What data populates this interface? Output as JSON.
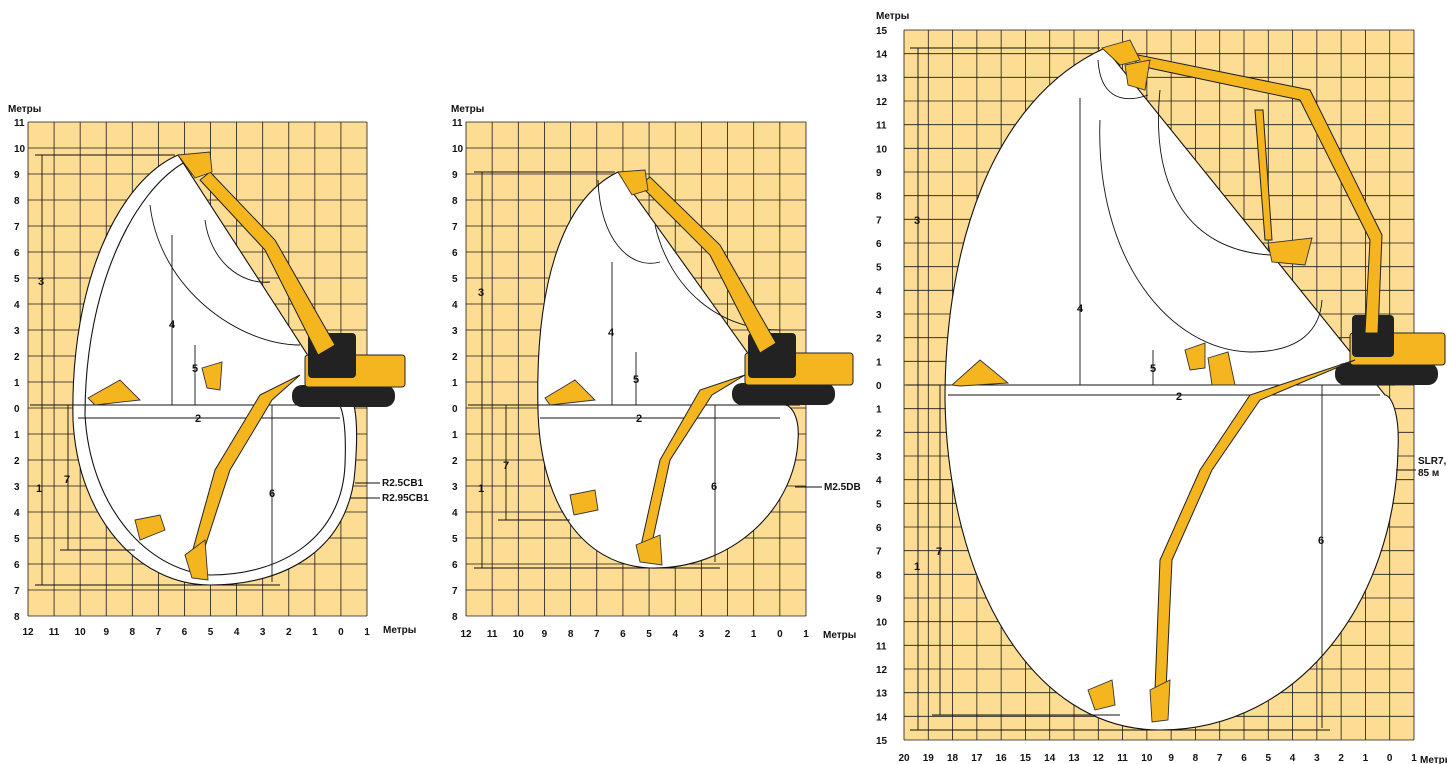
{
  "diagrams": [
    {
      "id": "r2",
      "y_title": "Метры",
      "x_title": "Метры",
      "x_ticks": [
        "12",
        "11",
        "10",
        "9",
        "8",
        "7",
        "6",
        "5",
        "4",
        "3",
        "2",
        "1",
        "0",
        "1"
      ],
      "y_ticks_up": [
        "11",
        "10",
        "9",
        "8",
        "7",
        "6",
        "5",
        "4",
        "3",
        "2",
        "1",
        "0"
      ],
      "y_ticks_down": [
        "1",
        "2",
        "3",
        "4",
        "5",
        "6",
        "7",
        "8"
      ],
      "dim_labels": [
        "1",
        "2",
        "3",
        "4",
        "5",
        "6",
        "7"
      ],
      "range_labels": [
        "R2.5CB1",
        "R2.95CB1"
      ],
      "x_range": [
        12,
        -1
      ],
      "y_range": [
        -8,
        11
      ]
    },
    {
      "id": "m25",
      "y_title": "Метры",
      "x_title": "Метры",
      "x_ticks": [
        "12",
        "11",
        "10",
        "9",
        "8",
        "7",
        "6",
        "5",
        "4",
        "3",
        "2",
        "1",
        "0",
        "1"
      ],
      "y_ticks_up": [
        "11",
        "10",
        "9",
        "8",
        "7",
        "6",
        "5",
        "4",
        "3",
        "2",
        "1",
        "0"
      ],
      "y_ticks_down": [
        "1",
        "2",
        "3",
        "4",
        "5",
        "6",
        "7",
        "8"
      ],
      "dim_labels": [
        "1",
        "2",
        "3",
        "4",
        "5",
        "6",
        "7"
      ],
      "range_labels": [
        "M2.5DB"
      ],
      "x_range": [
        12,
        -1
      ],
      "y_range": [
        -8,
        11
      ]
    },
    {
      "id": "slr",
      "y_title": "Метры",
      "x_title": "Метры",
      "x_ticks": [
        "20",
        "19",
        "18",
        "17",
        "16",
        "15",
        "14",
        "13",
        "12",
        "11",
        "10",
        "9",
        "8",
        "7",
        "6",
        "5",
        "4",
        "3",
        "2",
        "1",
        "0",
        "1"
      ],
      "y_ticks_up": [
        "15",
        "14",
        "13",
        "12",
        "11",
        "10",
        "9",
        "8",
        "7",
        "6",
        "5",
        "4",
        "3",
        "2",
        "1",
        "0"
      ],
      "y_ticks_down": [
        "1",
        "2",
        "3",
        "4",
        "5",
        "6",
        "7",
        "8",
        "9",
        "10",
        "11",
        "12",
        "13",
        "14",
        "15"
      ],
      "dim_labels": [
        "1",
        "2",
        "3",
        "4",
        "5",
        "6",
        "7"
      ],
      "range_labels": [
        "SLR7,",
        "85 м"
      ],
      "x_range": [
        20,
        -1
      ],
      "y_range": [
        -15,
        15
      ]
    }
  ],
  "colors": {
    "background": "#fddc93",
    "machine": "#f5b51f",
    "grid": "#1a1a1a"
  },
  "icons": [
    "excavator-icon",
    "bucket-icon"
  ]
}
